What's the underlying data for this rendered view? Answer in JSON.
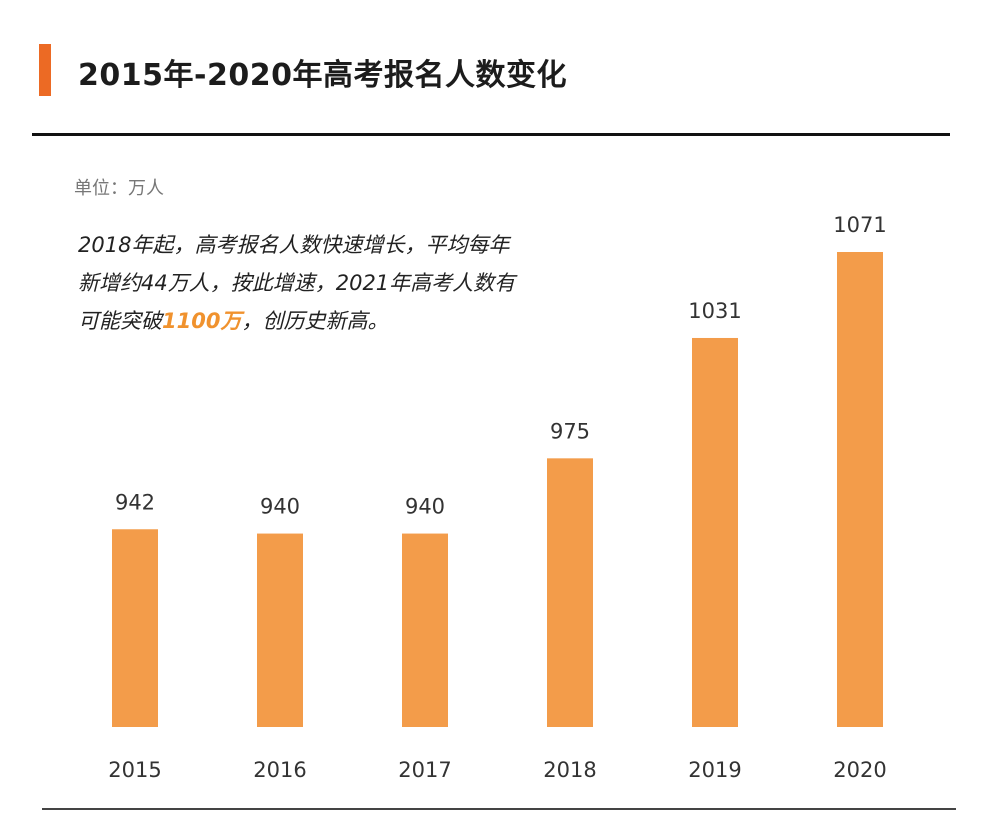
{
  "header": {
    "title": "2015年-2020年高考报名人数变化",
    "accent_color": "#ec6a24"
  },
  "unit_label": "单位：万人",
  "annotation": {
    "line1": "2018年起，高考报名人数快速增长，平均每年",
    "line2": "新增约44万人，按此增速，2021年高考人数有",
    "line3_pre": "可能突破",
    "line3_highlight": "1100万",
    "line3_post": "，创历史新高。",
    "highlight_color": "#f0922e"
  },
  "chart_data": {
    "type": "bar",
    "title": "2015年-2020年高考报名人数变化",
    "xlabel": "",
    "ylabel": "单位：万人",
    "categories": [
      "2015",
      "2016",
      "2017",
      "2018",
      "2019",
      "2020"
    ],
    "values": [
      942,
      940,
      940,
      975,
      1031,
      1071
    ],
    "data_labels": [
      "942",
      "940",
      "940",
      "975",
      "1031",
      "1071"
    ],
    "ylim": [
      850,
      1071
    ],
    "grid": false,
    "legend": "none",
    "bar_color": "#f39c4a"
  }
}
